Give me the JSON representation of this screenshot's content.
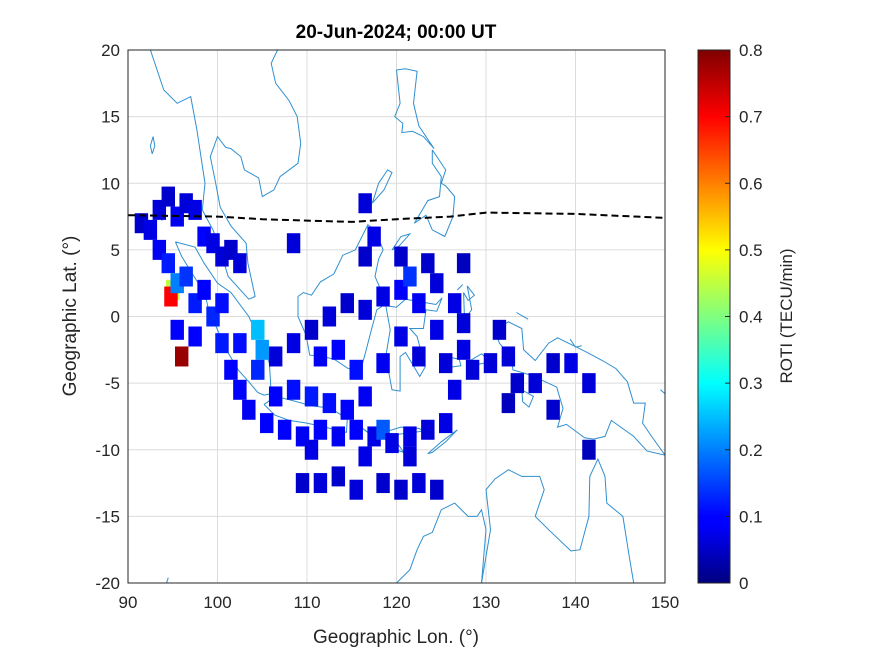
{
  "chart_data": {
    "type": "heatmap",
    "title": "20-Jun-2024; 00:00 UT",
    "xlabel": "Geographic Lon. (°)",
    "ylabel": "Geographic Lat. (°)",
    "xlim": [
      90,
      150
    ],
    "ylim": [
      -20,
      20
    ],
    "xticks": [
      "90",
      "100",
      "110",
      "120",
      "130",
      "140",
      "150"
    ],
    "yticks": [
      "20",
      "15",
      "10",
      "5",
      "0",
      "-5",
      "-10",
      "-15",
      "-20"
    ],
    "grid": true,
    "colorbar": {
      "label": "ROTI (TECU/min)",
      "range": [
        0,
        0.8
      ],
      "ticks": [
        "0.8",
        "0.7",
        "0.6",
        "0.5",
        "0.4",
        "0.3",
        "0.2",
        "0.1",
        "0"
      ],
      "colormap": "jet"
    },
    "magnetic_equator": [
      [
        90,
        7.6
      ],
      [
        100,
        7.5
      ],
      [
        105,
        7.3
      ],
      [
        110,
        7.2
      ],
      [
        115,
        7.1
      ],
      [
        120,
        7.3
      ],
      [
        126,
        7.5
      ],
      [
        130,
        7.8
      ],
      [
        140,
        7.7
      ],
      [
        150,
        7.4
      ]
    ],
    "cells": [
      [
        91.5,
        7.0,
        0.06
      ],
      [
        92.5,
        6.5,
        0.08
      ],
      [
        93.5,
        8.0,
        0.07
      ],
      [
        94.5,
        9.0,
        0.06
      ],
      [
        95.5,
        7.5,
        0.09
      ],
      [
        96.5,
        8.5,
        0.07
      ],
      [
        97.5,
        8.0,
        0.08
      ],
      [
        98.5,
        6.0,
        0.1
      ],
      [
        99.5,
        5.5,
        0.08
      ],
      [
        100.5,
        4.5,
        0.07
      ],
      [
        101.5,
        5.0,
        0.06
      ],
      [
        102.5,
        4.0,
        0.07
      ],
      [
        93.5,
        5.0,
        0.09
      ],
      [
        94.5,
        4.0,
        0.12
      ],
      [
        95.0,
        2.0,
        0.45
      ],
      [
        94.8,
        1.5,
        0.7
      ],
      [
        95.5,
        2.5,
        0.2
      ],
      [
        96.5,
        3.0,
        0.14
      ],
      [
        97.5,
        1.0,
        0.12
      ],
      [
        96.0,
        -3.0,
        0.78
      ],
      [
        95.5,
        -1.0,
        0.1
      ],
      [
        97.5,
        -1.5,
        0.1
      ],
      [
        99.5,
        0.0,
        0.13
      ],
      [
        100.5,
        -2.0,
        0.12
      ],
      [
        101.5,
        -4.0,
        0.1
      ],
      [
        102.5,
        -5.5,
        0.1
      ],
      [
        104.5,
        -1.0,
        0.25
      ],
      [
        105.0,
        -2.5,
        0.22
      ],
      [
        103.5,
        -7.0,
        0.09
      ],
      [
        105.5,
        -8.0,
        0.1
      ],
      [
        107.5,
        -8.5,
        0.1
      ],
      [
        109.5,
        -9.0,
        0.09
      ],
      [
        111.5,
        -8.5,
        0.1
      ],
      [
        113.5,
        -9.0,
        0.09
      ],
      [
        115.5,
        -8.5,
        0.1
      ],
      [
        117.5,
        -9.0,
        0.08
      ],
      [
        118.5,
        -8.5,
        0.17
      ],
      [
        119.5,
        -9.5,
        0.08
      ],
      [
        121.5,
        -9.0,
        0.08
      ],
      [
        123.5,
        -8.5,
        0.07
      ],
      [
        125.5,
        -8.0,
        0.08
      ],
      [
        106.5,
        -6.0,
        0.1
      ],
      [
        108.5,
        -5.5,
        0.11
      ],
      [
        110.5,
        -6.0,
        0.12
      ],
      [
        112.5,
        -6.5,
        0.11
      ],
      [
        114.5,
        -7.0,
        0.1
      ],
      [
        116.5,
        -6.0,
        0.09
      ],
      [
        106.5,
        -3.0,
        0.07
      ],
      [
        108.5,
        -2.0,
        0.08
      ],
      [
        110.5,
        -1.0,
        0.06
      ],
      [
        112.5,
        0.0,
        0.07
      ],
      [
        114.5,
        1.0,
        0.06
      ],
      [
        116.5,
        0.5,
        0.07
      ],
      [
        118.5,
        1.5,
        0.08
      ],
      [
        120.5,
        2.0,
        0.1
      ],
      [
        121.5,
        3.0,
        0.14
      ],
      [
        122.5,
        1.0,
        0.09
      ],
      [
        124.5,
        2.5,
        0.07
      ],
      [
        126.5,
        1.0,
        0.08
      ],
      [
        127.5,
        -0.5,
        0.07
      ],
      [
        116.5,
        4.5,
        0.06
      ],
      [
        117.5,
        6.0,
        0.08
      ],
      [
        116.5,
        8.5,
        0.07
      ],
      [
        108.5,
        5.5,
        0.07
      ],
      [
        111.5,
        -3.0,
        0.09
      ],
      [
        113.5,
        -2.5,
        0.1
      ],
      [
        115.5,
        -4.0,
        0.11
      ],
      [
        118.5,
        -3.5,
        0.09
      ],
      [
        120.5,
        -1.5,
        0.08
      ],
      [
        122.5,
        -3.0,
        0.07
      ],
      [
        124.5,
        -1.0,
        0.08
      ],
      [
        125.5,
        -3.5,
        0.07
      ],
      [
        127.5,
        -2.5,
        0.08
      ],
      [
        128.5,
        -4.0,
        0.07
      ],
      [
        130.5,
        -3.5,
        0.07
      ],
      [
        131.5,
        -1.0,
        0.06
      ],
      [
        132.5,
        -3.0,
        0.07
      ],
      [
        133.5,
        -5.0,
        0.06
      ],
      [
        135.5,
        -5.0,
        0.07
      ],
      [
        137.5,
        -3.5,
        0.06
      ],
      [
        139.5,
        -3.5,
        0.08
      ],
      [
        141.5,
        -5.0,
        0.07
      ],
      [
        141.5,
        -10.0,
        0.05
      ],
      [
        132.5,
        -6.5,
        0.05
      ],
      [
        137.5,
        -7.0,
        0.06
      ],
      [
        120.5,
        4.5,
        0.06
      ],
      [
        123.5,
        4.0,
        0.06
      ],
      [
        127.5,
        4.0,
        0.05
      ],
      [
        126.5,
        -5.5,
        0.08
      ],
      [
        109.5,
        -12.5,
        0.06
      ],
      [
        111.5,
        -12.5,
        0.07
      ],
      [
        113.5,
        -12.0,
        0.06
      ],
      [
        115.5,
        -13.0,
        0.07
      ],
      [
        118.5,
        -12.5,
        0.06
      ],
      [
        120.5,
        -13.0,
        0.06
      ],
      [
        122.5,
        -12.5,
        0.07
      ],
      [
        124.5,
        -13.0,
        0.06
      ],
      [
        110.5,
        -10.0,
        0.08
      ],
      [
        116.5,
        -10.5,
        0.08
      ],
      [
        121.5,
        -10.5,
        0.07
      ],
      [
        104.5,
        -4.0,
        0.13
      ],
      [
        102.5,
        -2.0,
        0.11
      ],
      [
        98.5,
        2.0,
        0.1
      ],
      [
        100.5,
        1.0,
        0.11
      ]
    ]
  }
}
